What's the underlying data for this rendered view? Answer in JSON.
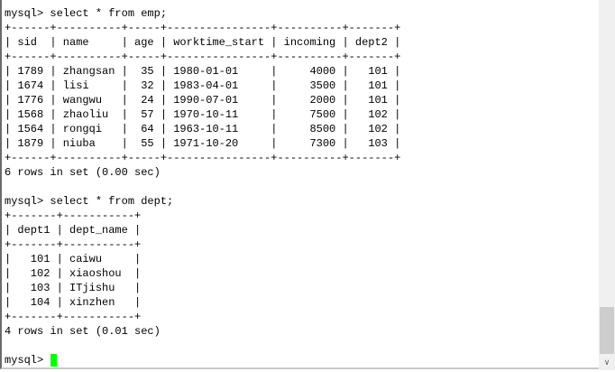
{
  "terminal": {
    "lines": [
      "mysql> select * from emp;",
      "+------+----------+-----+----------------+----------+-------+",
      "| sid  | name     | age | worktime_start | incoming | dept2 |",
      "+------+----------+-----+----------------+----------+-------+",
      "| 1789 | zhangsan |  35 | 1980-01-01     |     4000 |   101 |",
      "| 1674 | lisi     |  32 | 1983-04-01     |     3500 |   101 |",
      "| 1776 | wangwu   |  24 | 1990-07-01     |     2000 |   101 |",
      "| 1568 | zhaoliu  |  57 | 1970-10-11     |     7500 |   102 |",
      "| 1564 | rongqi   |  64 | 1963-10-11     |     8500 |   102 |",
      "| 1879 | niuba    |  55 | 1971-10-20     |     7300 |   103 |",
      "+------+----------+-----+----------------+----------+-------+",
      "6 rows in set (0.00 sec)",
      "",
      "mysql> select * from dept;",
      "+-------+-----------+",
      "| dept1 | dept_name |",
      "+-------+-----------+",
      "|   101 | caiwu     |",
      "|   102 | xiaoshou  |",
      "|   103 | ITjishu   |",
      "|   104 | xinzhen   |",
      "+-------+-----------+",
      "4 rows in set (0.01 sec)",
      ""
    ],
    "prompt": "mysql> ",
    "cursor_color": "#00ff00"
  },
  "scrollbar": {
    "down_arrow_icon": "chevron-down-icon",
    "arrow_glyph": "∨"
  }
}
